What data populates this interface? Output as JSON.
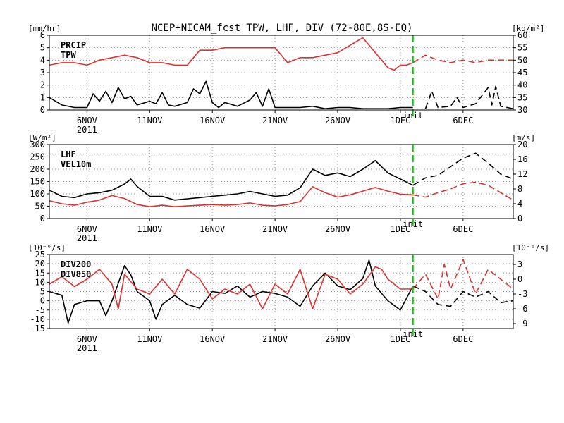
{
  "chart_data": {
    "type": "line",
    "title": "NCEP+NICAM_fcst TPW, LHF, DIV (72-80E,8S-EQ)",
    "x_tick_labels": [
      "6NOV",
      "11NOV",
      "16NOV",
      "21NOV",
      "26NOV",
      "1DEC",
      "6DEC"
    ],
    "x_year_label": "2011",
    "x_days": [
      6,
      11,
      16,
      21,
      26,
      31,
      36
    ],
    "x_range_days": [
      3,
      40
    ],
    "init_day": 32,
    "init_label": "init",
    "init_color": "#00cc00",
    "panels": [
      {
        "left_unit": "[mm/hr]",
        "right_unit": "[kg/m²]",
        "left_ticks": [
          0,
          1,
          2,
          3,
          4,
          5,
          6
        ],
        "right_ticks": [
          30,
          35,
          40,
          45,
          50,
          55,
          60
        ],
        "ylim_left": [
          0,
          6
        ],
        "ylim_right": [
          30,
          60
        ],
        "series": [
          {
            "name": "PRCIP",
            "axis": "left",
            "color": "#000000",
            "x": [
              3,
              4,
              5,
              6,
              6.5,
              7,
              7.5,
              8,
              8.5,
              9,
              9.5,
              10,
              11,
              11.5,
              12,
              12.5,
              13,
              14,
              14.5,
              15,
              15.5,
              16,
              16.5,
              17,
              18,
              19,
              19.5,
              20,
              20.5,
              21,
              22,
              23,
              24,
              25,
              26,
              27,
              28,
              29,
              30,
              31,
              32
            ],
            "values": [
              1,
              0.4,
              0.2,
              0.2,
              1.3,
              0.7,
              1.5,
              0.6,
              1.8,
              0.9,
              1.1,
              0.4,
              0.7,
              0.5,
              1.4,
              0.4,
              0.3,
              0.6,
              1.7,
              1.3,
              2.3,
              0.6,
              0.2,
              0.6,
              0.3,
              0.8,
              1.4,
              0.3,
              1.7,
              0.2,
              0.2,
              0.2,
              0.3,
              0.1,
              0.2,
              0.2,
              0.1,
              0.1,
              0.1,
              0.2,
              0.2
            ]
          },
          {
            "name": "PRCIP_fcst",
            "axis": "left",
            "color": "#000000",
            "dashed": true,
            "x": [
              33,
              33.5,
              34,
              35,
              35.5,
              36,
              37,
              38,
              38.3,
              38.6,
              39,
              40
            ],
            "values": [
              0.1,
              1.5,
              0.2,
              0.3,
              1,
              0.2,
              0.5,
              1.8,
              0.4,
              1.9,
              0.3,
              0.1
            ]
          },
          {
            "name": "TPW",
            "axis": "right",
            "color": "#e03030",
            "x": [
              3,
              4,
              5,
              6,
              7,
              8,
              9,
              10,
              11,
              12,
              13,
              14,
              15,
              16,
              17,
              18,
              19,
              20,
              21,
              22,
              23,
              24,
              25,
              26,
              27,
              28,
              29,
              30,
              30.5,
              31,
              31.5,
              32
            ],
            "values": [
              48,
              49,
              49,
              48,
              50,
              51,
              52,
              51,
              49,
              49,
              48,
              48,
              54,
              54,
              55,
              55,
              55,
              55,
              55,
              49,
              51,
              51,
              52,
              53,
              56,
              59,
              53,
              47,
              46,
              48,
              48,
              49
            ]
          },
          {
            "name": "TPW_fcst",
            "axis": "right",
            "color": "#e03030",
            "dashed": true,
            "x": [
              32,
              33,
              34,
              35,
              36,
              37,
              38,
              39,
              40
            ],
            "values": [
              49,
              52,
              50,
              49,
              50,
              49,
              50,
              50,
              50
            ]
          }
        ]
      },
      {
        "left_unit": "[W/m²]",
        "right_unit": "[m/s]",
        "left_ticks": [
          0,
          50,
          100,
          150,
          200,
          250,
          300
        ],
        "right_ticks": [
          0,
          4,
          8,
          12,
          16,
          20
        ],
        "ylim_left": [
          0,
          300
        ],
        "ylim_right": [
          0,
          20
        ],
        "series": [
          {
            "name": "LHF",
            "axis": "left",
            "color": "#000000",
            "x": [
              3,
              4,
              5,
              6,
              7,
              8,
              9,
              9.5,
              10,
              11,
              12,
              13,
              14,
              15,
              16,
              17,
              18,
              19,
              20,
              21,
              22,
              23,
              24,
              25,
              26,
              27,
              28,
              29,
              30,
              31,
              32
            ],
            "values": [
              115,
              90,
              85,
              100,
              105,
              115,
              140,
              160,
              130,
              90,
              90,
              75,
              80,
              85,
              90,
              95,
              100,
              110,
              100,
              90,
              95,
              125,
              200,
              175,
              185,
              170,
              200,
              235,
              185,
              160,
              135
            ]
          },
          {
            "name": "LHF_fcst",
            "axis": "left",
            "color": "#000000",
            "dashed": true,
            "x": [
              32,
              33,
              34,
              35,
              36,
              37,
              38,
              39,
              40
            ],
            "values": [
              135,
              165,
              175,
              210,
              245,
              265,
              225,
              180,
              160
            ]
          },
          {
            "name": "VEL10m",
            "axis": "right",
            "color": "#e03030",
            "x": [
              3,
              4,
              5,
              6,
              7,
              8,
              9,
              10,
              11,
              12,
              13,
              14,
              15,
              16,
              17,
              18,
              19,
              20,
              21,
              22,
              23,
              24,
              25,
              26,
              27,
              28,
              29,
              30,
              31,
              32
            ],
            "values": [
              4.8,
              4,
              3.6,
              4.4,
              5,
              6.2,
              5.4,
              3.8,
              3.2,
              3.6,
              3.2,
              3.4,
              3.6,
              3.8,
              3.6,
              3.8,
              4.2,
              3.6,
              3.4,
              3.8,
              4.6,
              8.6,
              7,
              5.8,
              6.4,
              7.4,
              8.4,
              7.4,
              6.6,
              6.4
            ]
          },
          {
            "name": "VEL10m_fcst",
            "axis": "right",
            "color": "#e03030",
            "dashed": true,
            "x": [
              32,
              33,
              34,
              35,
              36,
              37,
              38,
              39,
              40
            ],
            "values": [
              6.4,
              5.8,
              7,
              8,
              9.4,
              9.8,
              9,
              7,
              5
            ]
          }
        ]
      },
      {
        "left_unit": "[10⁻⁶/s]",
        "right_unit": "[10⁻⁶/s]",
        "left_ticks": [
          -15,
          -10,
          -5,
          0,
          5,
          10,
          15,
          20,
          25
        ],
        "right_ticks": [
          -9,
          -6,
          -3,
          0,
          3
        ],
        "ylim_left": [
          -15,
          25
        ],
        "ylim_right": [
          -10,
          5
        ],
        "series": [
          {
            "name": "DIV200",
            "axis": "left",
            "color": "#000000",
            "x": [
              3,
              4,
              4.5,
              5,
              6,
              7,
              7.5,
              8,
              9,
              9.5,
              10,
              11,
              11.5,
              12,
              13,
              14,
              15,
              16,
              17,
              18,
              19,
              20,
              21,
              22,
              23,
              24,
              25,
              26,
              27,
              28,
              28.5,
              29,
              30,
              31,
              32
            ],
            "values": [
              5,
              3,
              -12,
              -2,
              0,
              0,
              -8,
              0,
              19,
              14,
              5,
              0,
              -10,
              -2,
              3,
              -2,
              -4,
              5,
              4,
              8,
              2,
              5,
              4,
              2,
              -3,
              8,
              15,
              8,
              6,
              12,
              22,
              8,
              0,
              -5,
              8
            ]
          },
          {
            "name": "DIV200_fcst",
            "axis": "left",
            "color": "#000000",
            "dashed": true,
            "x": [
              32,
              33,
              34,
              35,
              36,
              37,
              38,
              39,
              40
            ],
            "values": [
              8,
              5,
              -2,
              -3,
              5,
              2,
              5,
              -1,
              0
            ]
          },
          {
            "name": "DIV850",
            "axis": "right",
            "color": "#e03030",
            "x": [
              3,
              4,
              5,
              6,
              7,
              8,
              8.5,
              9,
              10,
              11,
              12,
              13,
              14,
              15,
              16,
              17,
              18,
              19,
              20,
              21,
              22,
              23,
              24,
              25,
              26,
              27,
              28,
              29,
              29.5,
              30,
              31,
              32
            ],
            "values": [
              -1,
              0.5,
              -1.5,
              0,
              2,
              -1,
              -6,
              1,
              -2,
              -3,
              0,
              -3,
              2,
              0,
              -4,
              -2,
              -3,
              -1,
              -6,
              -1,
              -3,
              2,
              -6,
              1,
              0,
              -3,
              -1,
              2.5,
              2,
              0,
              -2,
              -2
            ]
          },
          {
            "name": "DIV850_fcst",
            "axis": "right",
            "color": "#e03030",
            "dashed": true,
            "x": [
              32,
              33,
              34,
              34.5,
              35,
              36,
              37,
              38,
              39,
              40
            ],
            "values": [
              -2,
              1,
              -4,
              3,
              -2,
              4,
              -3,
              2,
              0,
              -2
            ]
          }
        ]
      }
    ]
  }
}
